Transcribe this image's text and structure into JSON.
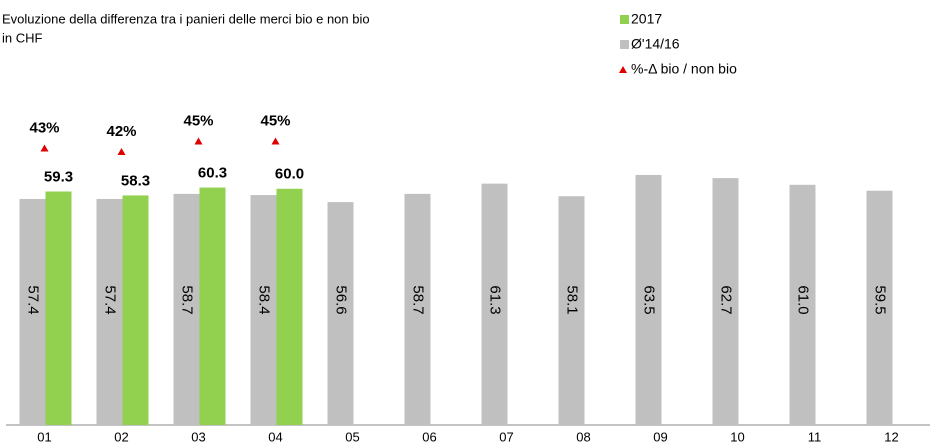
{
  "chart_data": {
    "type": "bar",
    "title": "Evoluzione della differenza tra i panieri delle merci bio e non bio",
    "subtitle": "in CHF",
    "categories": [
      "01",
      "02",
      "03",
      "04",
      "05",
      "06",
      "07",
      "08",
      "09",
      "10",
      "11",
      "12"
    ],
    "series": [
      {
        "name": "2017",
        "color": "#92d050",
        "values": [
          59.3,
          58.3,
          60.3,
          60.0,
          null,
          null,
          null,
          null,
          null,
          null,
          null,
          null
        ],
        "value_labels": [
          "59.3",
          "58.3",
          "60.3",
          "60.0",
          null,
          null,
          null,
          null,
          null,
          null,
          null,
          null
        ]
      },
      {
        "name": "Ø'14/16",
        "color": "#c0c0c0",
        "values": [
          57.4,
          57.4,
          58.7,
          58.4,
          56.6,
          58.7,
          61.3,
          58.1,
          63.5,
          62.7,
          61.0,
          59.5
        ],
        "value_labels": [
          "57.4",
          "57.4",
          "58.7",
          "58.4",
          "56.6",
          "58.7",
          "61.3",
          "58.1",
          "63.5",
          "62.7",
          "61.0",
          "59.5"
        ]
      },
      {
        "name": "%-Δ bio / non bio",
        "color": "#e00000",
        "axis": "y2",
        "type": "scatter",
        "values": [
          43,
          42,
          45,
          45,
          null,
          null,
          null,
          null,
          null,
          null,
          null,
          null
        ],
        "value_labels": [
          "43%",
          "42%",
          "45%",
          "45%",
          null,
          null,
          null,
          null,
          null,
          null,
          null,
          null
        ]
      }
    ],
    "ylim": [
      0,
      80
    ],
    "y2lim": [
      -36,
      54
    ]
  }
}
